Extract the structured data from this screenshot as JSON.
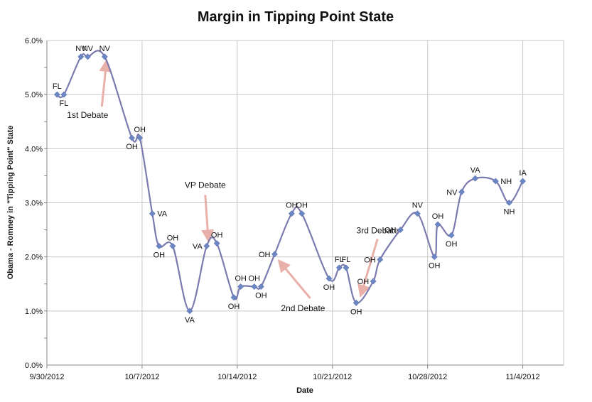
{
  "colors": {
    "series_line": "#7b7bb0",
    "marker": "#6d87c4",
    "gridline": "#c8c8c8",
    "axis": "#888888",
    "annotation_arrow": "#e9b0aa"
  },
  "chart_data": {
    "type": "line",
    "title": "Margin in Tipping Point State",
    "xlabel": "Date",
    "ylabel": "Obama - Romney in \"Tipping Point\" State",
    "x_tick_labels": [
      "9/30/2012",
      "10/7/2012",
      "10/14/2012",
      "10/21/2012",
      "10/28/2012",
      "11/4/2012"
    ],
    "x_ticks": [
      "2012-09-30",
      "2012-10-07",
      "2012-10-14",
      "2012-10-21",
      "2012-10-28",
      "2012-11-04"
    ],
    "y_tick_labels": [
      "0.0%",
      "1.0%",
      "2.0%",
      "3.0%",
      "4.0%",
      "5.0%",
      "6.0%"
    ],
    "y_ticks": [
      0,
      1,
      2,
      3,
      4,
      5,
      6
    ],
    "xlim": [
      "2012-09-30",
      "2012-11-07"
    ],
    "ylim": [
      0,
      6
    ],
    "grid": "both",
    "smooth": true,
    "points": [
      {
        "x": "2012-09-30 18:00",
        "y": 5.0,
        "label": "FL"
      },
      {
        "x": "2012-10-01 06:00",
        "y": 5.0,
        "label": "FL"
      },
      {
        "x": "2012-10-02 12:00",
        "y": 5.7,
        "label": "NV"
      },
      {
        "x": "2012-10-03 00:00",
        "y": 5.7,
        "label": "NV"
      },
      {
        "x": "2012-10-04 06:00",
        "y": 5.7,
        "label": "NV"
      },
      {
        "x": "2012-10-06 06:00",
        "y": 4.2,
        "label": "OH"
      },
      {
        "x": "2012-10-06 20:00",
        "y": 4.2,
        "label": "OH"
      },
      {
        "x": "2012-10-07 18:00",
        "y": 2.8,
        "label": "VA"
      },
      {
        "x": "2012-10-08 06:00",
        "y": 2.2,
        "label": "OH"
      },
      {
        "x": "2012-10-09 06:00",
        "y": 2.2,
        "label": "OH"
      },
      {
        "x": "2012-10-10 12:00",
        "y": 1.0,
        "label": "VA"
      },
      {
        "x": "2012-10-11 18:00",
        "y": 2.2,
        "label": "VA"
      },
      {
        "x": "2012-10-12 12:00",
        "y": 2.25,
        "label": "OH"
      },
      {
        "x": "2012-10-13 18:00",
        "y": 1.25,
        "label": "OH"
      },
      {
        "x": "2012-10-14 06:00",
        "y": 1.45,
        "label": "OH"
      },
      {
        "x": "2012-10-15 06:00",
        "y": 1.45,
        "label": "OH"
      },
      {
        "x": "2012-10-15 18:00",
        "y": 1.45,
        "label": "OH"
      },
      {
        "x": "2012-10-16 18:00",
        "y": 2.05,
        "label": "OH"
      },
      {
        "x": "2012-10-18 00:00",
        "y": 2.8,
        "label": "OH"
      },
      {
        "x": "2012-10-18 18:00",
        "y": 2.8,
        "label": "OH"
      },
      {
        "x": "2012-10-20 18:00",
        "y": 1.6,
        "label": "OH"
      },
      {
        "x": "2012-10-21 12:00",
        "y": 1.8,
        "label": "FL"
      },
      {
        "x": "2012-10-22 00:00",
        "y": 1.8,
        "label": "FL"
      },
      {
        "x": "2012-10-22 18:00",
        "y": 1.15,
        "label": "OH"
      },
      {
        "x": "2012-10-24 00:00",
        "y": 1.55,
        "label": "OH"
      },
      {
        "x": "2012-10-24 12:00",
        "y": 1.95,
        "label": "OH"
      },
      {
        "x": "2012-10-26 00:00",
        "y": 2.5,
        "label": "OH"
      },
      {
        "x": "2012-10-27 06:00",
        "y": 2.8,
        "label": "NV"
      },
      {
        "x": "2012-10-28 12:00",
        "y": 2.0,
        "label": "OH"
      },
      {
        "x": "2012-10-28 18:00",
        "y": 2.6,
        "label": "OH"
      },
      {
        "x": "2012-10-29 18:00",
        "y": 2.4,
        "label": "OH"
      },
      {
        "x": "2012-10-30 12:00",
        "y": 3.2,
        "label": "NV"
      },
      {
        "x": "2012-10-31 12:00",
        "y": 3.45,
        "label": "VA"
      },
      {
        "x": "2012-11-02 00:00",
        "y": 3.4,
        "label": "NH"
      },
      {
        "x": "2012-11-03 00:00",
        "y": 3.0,
        "label": "NH"
      },
      {
        "x": "2012-11-04 00:00",
        "y": 3.4,
        "label": "IA"
      }
    ],
    "annotations": [
      {
        "text": "1st Debate",
        "arrow_to": 4,
        "placement": "below"
      },
      {
        "text": "VP Debate",
        "arrow_to": 11,
        "placement": "above"
      },
      {
        "text": "2nd Debate",
        "arrow_to": 17,
        "placement": "below-right"
      },
      {
        "text": "3rd Debate",
        "arrow_to": 23,
        "placement": "above-right"
      }
    ]
  }
}
